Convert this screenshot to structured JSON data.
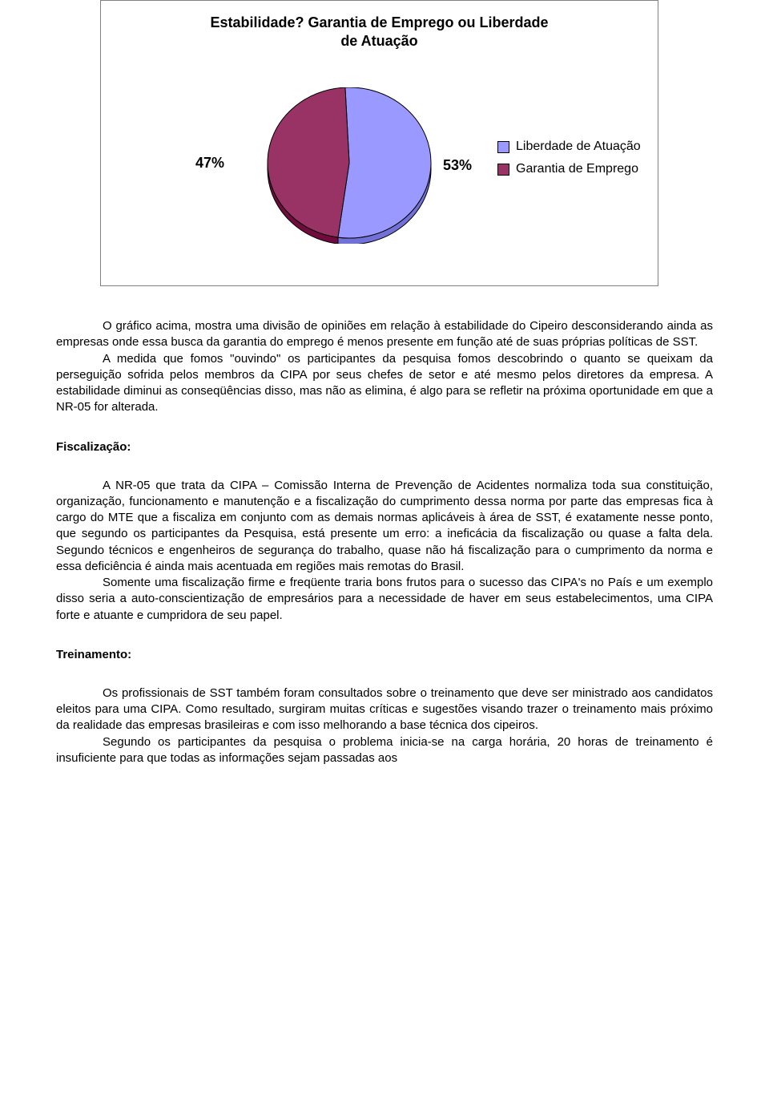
{
  "chart": {
    "type": "pie",
    "title_line1": "Estabilidade? Garantia de Emprego ou Liberdade",
    "title_line2": "de Atuação",
    "title_fontsize": 18,
    "slices": [
      {
        "label": "Liberdade de Atuação",
        "value": 53,
        "color": "#9999ff",
        "pct_text": "53%"
      },
      {
        "label": "Garantia de Emprego",
        "value": 47,
        "color": "#993366",
        "pct_text": "47%"
      }
    ],
    "border_color": "#808080",
    "background_color": "#ffffff",
    "slice_border_color": "#000000",
    "pct_fontsize": 18,
    "legend_fontsize": 16
  },
  "body": {
    "p1": "O gráfico acima, mostra uma divisão de opiniões em relação à estabilidade do Cipeiro desconsiderando ainda as empresas onde essa busca da garantia do emprego é menos presente em função até de suas próprias políticas de SST.",
    "p1b": "A medida que fomos \"ouvindo\" os participantes da pesquisa fomos descobrindo o quanto se queixam da perseguição sofrida pelos membros da CIPA por seus chefes de setor e até mesmo pelos diretores da empresa. A estabilidade diminui as conseqüências disso, mas não as elimina, é algo para se refletir na próxima oportunidade em que a NR-05 for alterada.",
    "h2": "Fiscalização:",
    "p2": "A NR-05 que trata da CIPA – Comissão Interna de Prevenção de Acidentes normaliza toda sua constituição, organização, funcionamento e manutenção e a fiscalização do cumprimento dessa norma por parte das empresas fica à cargo do MTE que a fiscaliza em conjunto com as demais normas aplicáveis à área de SST, é exatamente nesse ponto, que segundo os participantes da Pesquisa, está presente um erro: a ineficácia da fiscalização ou quase a falta dela. Segundo técnicos e engenheiros de segurança do trabalho, quase não há fiscalização para o cumprimento da norma e essa deficiência é ainda mais acentuada em regiões mais remotas do Brasil.",
    "p2b": "Somente uma fiscalização firme e freqüente traria bons frutos para o sucesso das CIPA's no País e um exemplo disso seria a auto-conscientização de empresários para a necessidade de haver em seus estabelecimentos, uma CIPA forte e atuante e cumpridora de seu papel.",
    "h3": "Treinamento:",
    "p3": "Os profissionais de SST também foram consultados sobre o treinamento que deve ser ministrado aos candidatos eleitos para uma CIPA. Como resultado, surgiram muitas críticas e sugestões visando trazer o treinamento mais próximo da realidade das empresas brasileiras e com isso melhorando a base técnica dos cipeiros.",
    "p3b": "Segundo os participantes da pesquisa o problema inicia-se na carga horária, 20 horas de treinamento é insuficiente para que todas as informações sejam passadas aos"
  }
}
